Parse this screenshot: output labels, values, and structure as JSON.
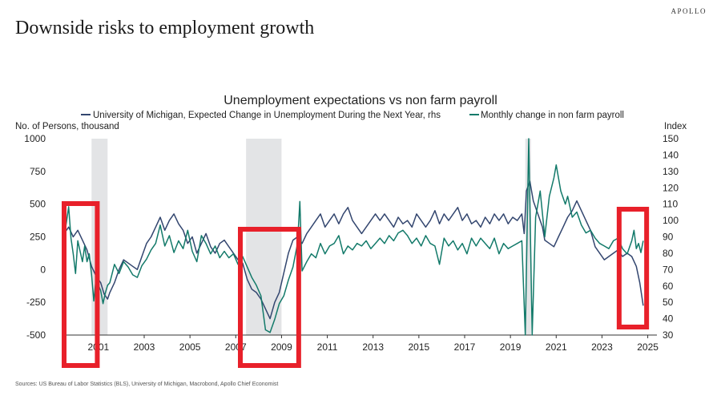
{
  "brand": "APOLLO",
  "headline": "Downside risks to employment growth",
  "sources": "Sources: US Bureau of Labor Statistics (BLS), University of Michigan, Macrobond, Apollo Chief Economist",
  "chart_data": {
    "type": "line",
    "title": "Unemployment expectations vs non farm payroll",
    "ylabel_left": "No. of Persons, thousand",
    "ylabel_right": "Index",
    "ylim_left": [
      -500,
      1000
    ],
    "ylim_right": [
      30,
      150
    ],
    "xlim": [
      2000.0,
      2025.9
    ],
    "x_ticks": [
      "2001",
      "2003",
      "2005",
      "2007",
      "2009",
      "2011",
      "2013",
      "2015",
      "2017",
      "2019",
      "2021",
      "2023",
      "2025"
    ],
    "y_ticks_left": [
      "1000",
      "750",
      "500",
      "250",
      "0",
      "-250",
      "-500"
    ],
    "y_ticks_right": [
      "150",
      "140",
      "130",
      "120",
      "110",
      "100",
      "90",
      "80",
      "70",
      "60",
      "50",
      "40",
      "30"
    ],
    "recessions": [
      [
        2001.2,
        2001.9
      ],
      [
        2007.95,
        2009.5
      ],
      [
        2020.15,
        2020.4
      ]
    ],
    "highlight_boxes": [
      [
        2000.0,
        2001.45
      ],
      [
        2007.7,
        2010.25
      ],
      [
        2024.25,
        2025.45
      ]
    ],
    "legend": [
      {
        "name": "University of Michigan, Expected Change in Unemployment During the Next Year, rhs",
        "color": "#33466f"
      },
      {
        "name": "Monthly change in non farm payroll",
        "color": "#137a6a"
      }
    ],
    "series": [
      {
        "name": "University of Michigan, Expected Change in Unemployment During the Next Year, rhs",
        "axis": "right",
        "color": "#33466f",
        "points": [
          [
            2000.0,
            92
          ],
          [
            2000.2,
            96
          ],
          [
            2000.4,
            90
          ],
          [
            2000.6,
            94
          ],
          [
            2000.8,
            88
          ],
          [
            2001.0,
            82
          ],
          [
            2001.2,
            72
          ],
          [
            2001.4,
            66
          ],
          [
            2001.6,
            62
          ],
          [
            2001.75,
            55
          ],
          [
            2001.9,
            52
          ],
          [
            2002.0,
            56
          ],
          [
            2002.2,
            62
          ],
          [
            2002.4,
            70
          ],
          [
            2002.6,
            76
          ],
          [
            2002.8,
            74
          ],
          [
            2003.0,
            72
          ],
          [
            2003.2,
            70
          ],
          [
            2003.4,
            78
          ],
          [
            2003.6,
            86
          ],
          [
            2003.8,
            90
          ],
          [
            2004.0,
            96
          ],
          [
            2004.2,
            102
          ],
          [
            2004.4,
            94
          ],
          [
            2004.6,
            100
          ],
          [
            2004.8,
            104
          ],
          [
            2005.0,
            98
          ],
          [
            2005.2,
            94
          ],
          [
            2005.4,
            86
          ],
          [
            2005.6,
            90
          ],
          [
            2005.8,
            80
          ],
          [
            2006.0,
            86
          ],
          [
            2006.2,
            92
          ],
          [
            2006.4,
            84
          ],
          [
            2006.6,
            80
          ],
          [
            2006.8,
            86
          ],
          [
            2007.0,
            88
          ],
          [
            2007.2,
            84
          ],
          [
            2007.4,
            80
          ],
          [
            2007.6,
            76
          ],
          [
            2007.8,
            74
          ],
          [
            2008.0,
            64
          ],
          [
            2008.2,
            58
          ],
          [
            2008.4,
            56
          ],
          [
            2008.6,
            52
          ],
          [
            2008.8,
            46
          ],
          [
            2009.0,
            40
          ],
          [
            2009.2,
            50
          ],
          [
            2009.4,
            56
          ],
          [
            2009.6,
            68
          ],
          [
            2009.8,
            80
          ],
          [
            2010.0,
            88
          ],
          [
            2010.2,
            90
          ],
          [
            2010.4,
            86
          ],
          [
            2010.6,
            92
          ],
          [
            2010.8,
            96
          ],
          [
            2011.0,
            100
          ],
          [
            2011.2,
            104
          ],
          [
            2011.4,
            96
          ],
          [
            2011.6,
            100
          ],
          [
            2011.8,
            104
          ],
          [
            2012.0,
            98
          ],
          [
            2012.2,
            104
          ],
          [
            2012.4,
            108
          ],
          [
            2012.6,
            100
          ],
          [
            2012.8,
            96
          ],
          [
            2013.0,
            92
          ],
          [
            2013.2,
            96
          ],
          [
            2013.4,
            100
          ],
          [
            2013.6,
            104
          ],
          [
            2013.8,
            100
          ],
          [
            2014.0,
            104
          ],
          [
            2014.2,
            100
          ],
          [
            2014.4,
            96
          ],
          [
            2014.6,
            102
          ],
          [
            2014.8,
            98
          ],
          [
            2015.0,
            100
          ],
          [
            2015.2,
            96
          ],
          [
            2015.4,
            104
          ],
          [
            2015.6,
            100
          ],
          [
            2015.8,
            96
          ],
          [
            2016.0,
            100
          ],
          [
            2016.2,
            106
          ],
          [
            2016.4,
            98
          ],
          [
            2016.6,
            104
          ],
          [
            2016.8,
            100
          ],
          [
            2017.0,
            104
          ],
          [
            2017.2,
            108
          ],
          [
            2017.4,
            100
          ],
          [
            2017.6,
            104
          ],
          [
            2017.8,
            98
          ],
          [
            2018.0,
            100
          ],
          [
            2018.2,
            96
          ],
          [
            2018.4,
            102
          ],
          [
            2018.6,
            98
          ],
          [
            2018.8,
            104
          ],
          [
            2019.0,
            100
          ],
          [
            2019.2,
            104
          ],
          [
            2019.4,
            98
          ],
          [
            2019.6,
            102
          ],
          [
            2019.8,
            100
          ],
          [
            2020.0,
            104
          ],
          [
            2020.1,
            92
          ],
          [
            2020.2,
            118
          ],
          [
            2020.35,
            124
          ],
          [
            2020.5,
            112
          ],
          [
            2020.7,
            104
          ],
          [
            2020.9,
            96
          ],
          [
            2021.0,
            88
          ],
          [
            2021.2,
            86
          ],
          [
            2021.4,
            84
          ],
          [
            2021.6,
            90
          ],
          [
            2021.8,
            96
          ],
          [
            2022.0,
            102
          ],
          [
            2022.2,
            106
          ],
          [
            2022.4,
            112
          ],
          [
            2022.6,
            106
          ],
          [
            2022.8,
            100
          ],
          [
            2023.0,
            94
          ],
          [
            2023.2,
            84
          ],
          [
            2023.4,
            80
          ],
          [
            2023.6,
            76
          ],
          [
            2023.8,
            78
          ],
          [
            2024.0,
            80
          ],
          [
            2024.2,
            82
          ],
          [
            2024.4,
            78
          ],
          [
            2024.6,
            80
          ],
          [
            2024.8,
            78
          ],
          [
            2025.0,
            72
          ],
          [
            2025.15,
            62
          ],
          [
            2025.3,
            48
          ]
        ]
      },
      {
        "name": "Monthly change in non farm payroll",
        "axis": "left",
        "color": "#137a6a",
        "points": [
          [
            2000.0,
            250
          ],
          [
            2000.1,
            360
          ],
          [
            2000.2,
            480
          ],
          [
            2000.3,
            240
          ],
          [
            2000.4,
            120
          ],
          [
            2000.5,
            -30
          ],
          [
            2000.6,
            220
          ],
          [
            2000.7,
            140
          ],
          [
            2000.8,
            60
          ],
          [
            2000.9,
            180
          ],
          [
            2001.0,
            60
          ],
          [
            2001.1,
            120
          ],
          [
            2001.2,
            -40
          ],
          [
            2001.3,
            -240
          ],
          [
            2001.4,
            -60
          ],
          [
            2001.5,
            -120
          ],
          [
            2001.6,
            -160
          ],
          [
            2001.7,
            -260
          ],
          [
            2001.8,
            -180
          ],
          [
            2001.9,
            -120
          ],
          [
            2002.0,
            -100
          ],
          [
            2002.2,
            40
          ],
          [
            2002.4,
            -30
          ],
          [
            2002.6,
            60
          ],
          [
            2002.8,
            20
          ],
          [
            2003.0,
            -40
          ],
          [
            2003.2,
            -60
          ],
          [
            2003.4,
            30
          ],
          [
            2003.6,
            80
          ],
          [
            2003.8,
            150
          ],
          [
            2004.0,
            200
          ],
          [
            2004.2,
            340
          ],
          [
            2004.4,
            180
          ],
          [
            2004.6,
            260
          ],
          [
            2004.8,
            130
          ],
          [
            2005.0,
            220
          ],
          [
            2005.2,
            160
          ],
          [
            2005.4,
            300
          ],
          [
            2005.6,
            140
          ],
          [
            2005.8,
            60
          ],
          [
            2006.0,
            260
          ],
          [
            2006.2,
            200
          ],
          [
            2006.4,
            120
          ],
          [
            2006.6,
            180
          ],
          [
            2006.8,
            90
          ],
          [
            2007.0,
            140
          ],
          [
            2007.2,
            90
          ],
          [
            2007.4,
            120
          ],
          [
            2007.6,
            40
          ],
          [
            2007.8,
            100
          ],
          [
            2008.0,
            20
          ],
          [
            2008.2,
            -60
          ],
          [
            2008.4,
            -120
          ],
          [
            2008.6,
            -200
          ],
          [
            2008.8,
            -460
          ],
          [
            2009.0,
            -480
          ],
          [
            2009.2,
            -380
          ],
          [
            2009.4,
            -260
          ],
          [
            2009.6,
            -200
          ],
          [
            2009.8,
            -80
          ],
          [
            2010.0,
            20
          ],
          [
            2010.2,
            200
          ],
          [
            2010.3,
            520
          ],
          [
            2010.4,
            -10
          ],
          [
            2010.6,
            60
          ],
          [
            2010.8,
            120
          ],
          [
            2011.0,
            90
          ],
          [
            2011.2,
            200
          ],
          [
            2011.4,
            120
          ],
          [
            2011.6,
            180
          ],
          [
            2011.8,
            200
          ],
          [
            2012.0,
            260
          ],
          [
            2012.2,
            120
          ],
          [
            2012.4,
            180
          ],
          [
            2012.6,
            150
          ],
          [
            2012.8,
            200
          ],
          [
            2013.0,
            180
          ],
          [
            2013.2,
            220
          ],
          [
            2013.4,
            160
          ],
          [
            2013.6,
            200
          ],
          [
            2013.8,
            240
          ],
          [
            2014.0,
            200
          ],
          [
            2014.2,
            260
          ],
          [
            2014.4,
            220
          ],
          [
            2014.6,
            280
          ],
          [
            2014.8,
            300
          ],
          [
            2015.0,
            260
          ],
          [
            2015.2,
            200
          ],
          [
            2015.4,
            240
          ],
          [
            2015.6,
            180
          ],
          [
            2015.8,
            260
          ],
          [
            2016.0,
            200
          ],
          [
            2016.2,
            180
          ],
          [
            2016.4,
            40
          ],
          [
            2016.6,
            240
          ],
          [
            2016.8,
            180
          ],
          [
            2017.0,
            220
          ],
          [
            2017.2,
            150
          ],
          [
            2017.4,
            200
          ],
          [
            2017.6,
            120
          ],
          [
            2017.8,
            240
          ],
          [
            2018.0,
            180
          ],
          [
            2018.2,
            240
          ],
          [
            2018.4,
            200
          ],
          [
            2018.6,
            160
          ],
          [
            2018.8,
            240
          ],
          [
            2019.0,
            120
          ],
          [
            2019.2,
            200
          ],
          [
            2019.4,
            160
          ],
          [
            2019.6,
            180
          ],
          [
            2019.8,
            200
          ],
          [
            2020.0,
            220
          ],
          [
            2020.15,
            -500
          ],
          [
            2020.3,
            1000
          ],
          [
            2020.45,
            -500
          ],
          [
            2020.6,
            400
          ],
          [
            2020.8,
            600
          ],
          [
            2021.0,
            250
          ],
          [
            2021.2,
            560
          ],
          [
            2021.4,
            700
          ],
          [
            2021.5,
            800
          ],
          [
            2021.7,
            600
          ],
          [
            2021.9,
            500
          ],
          [
            2022.0,
            560
          ],
          [
            2022.2,
            400
          ],
          [
            2022.4,
            440
          ],
          [
            2022.6,
            340
          ],
          [
            2022.8,
            280
          ],
          [
            2023.0,
            300
          ],
          [
            2023.2,
            240
          ],
          [
            2023.4,
            200
          ],
          [
            2023.6,
            180
          ],
          [
            2023.8,
            160
          ],
          [
            2024.0,
            220
          ],
          [
            2024.2,
            240
          ],
          [
            2024.4,
            160
          ],
          [
            2024.6,
            120
          ],
          [
            2024.8,
            220
          ],
          [
            2024.9,
            300
          ],
          [
            2025.0,
            160
          ],
          [
            2025.1,
            200
          ],
          [
            2025.2,
            130
          ],
          [
            2025.3,
            220
          ]
        ]
      }
    ]
  }
}
